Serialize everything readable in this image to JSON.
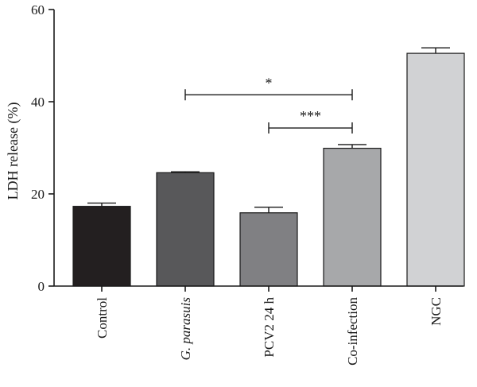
{
  "chart_data": {
    "type": "bar",
    "title": "",
    "xlabel": "",
    "ylabel": "LDH release (%)",
    "ylim": [
      0,
      60
    ],
    "yticks": [
      0,
      20,
      40,
      60
    ],
    "grid": false,
    "categories": [
      {
        "label": "Control",
        "italic": false
      },
      {
        "label": "G. parasuis",
        "italic": true
      },
      {
        "label": "PCV2 24 h",
        "italic": false
      },
      {
        "label": "Co-infection",
        "italic": false
      },
      {
        "label": "NGC",
        "italic": false
      }
    ],
    "values": [
      17.3,
      24.6,
      15.9,
      29.9,
      50.5
    ],
    "errors": [
      0.7,
      0.2,
      1.2,
      0.8,
      1.2
    ],
    "colors": [
      "#231f20",
      "#58585a",
      "#808083",
      "#a7a8aa",
      "#d1d2d4"
    ],
    "significance": [
      {
        "from": 1,
        "to": 3,
        "y": 41.5,
        "label": "*"
      },
      {
        "from": 2,
        "to": 3,
        "y": 34.3,
        "label": "***"
      }
    ]
  }
}
